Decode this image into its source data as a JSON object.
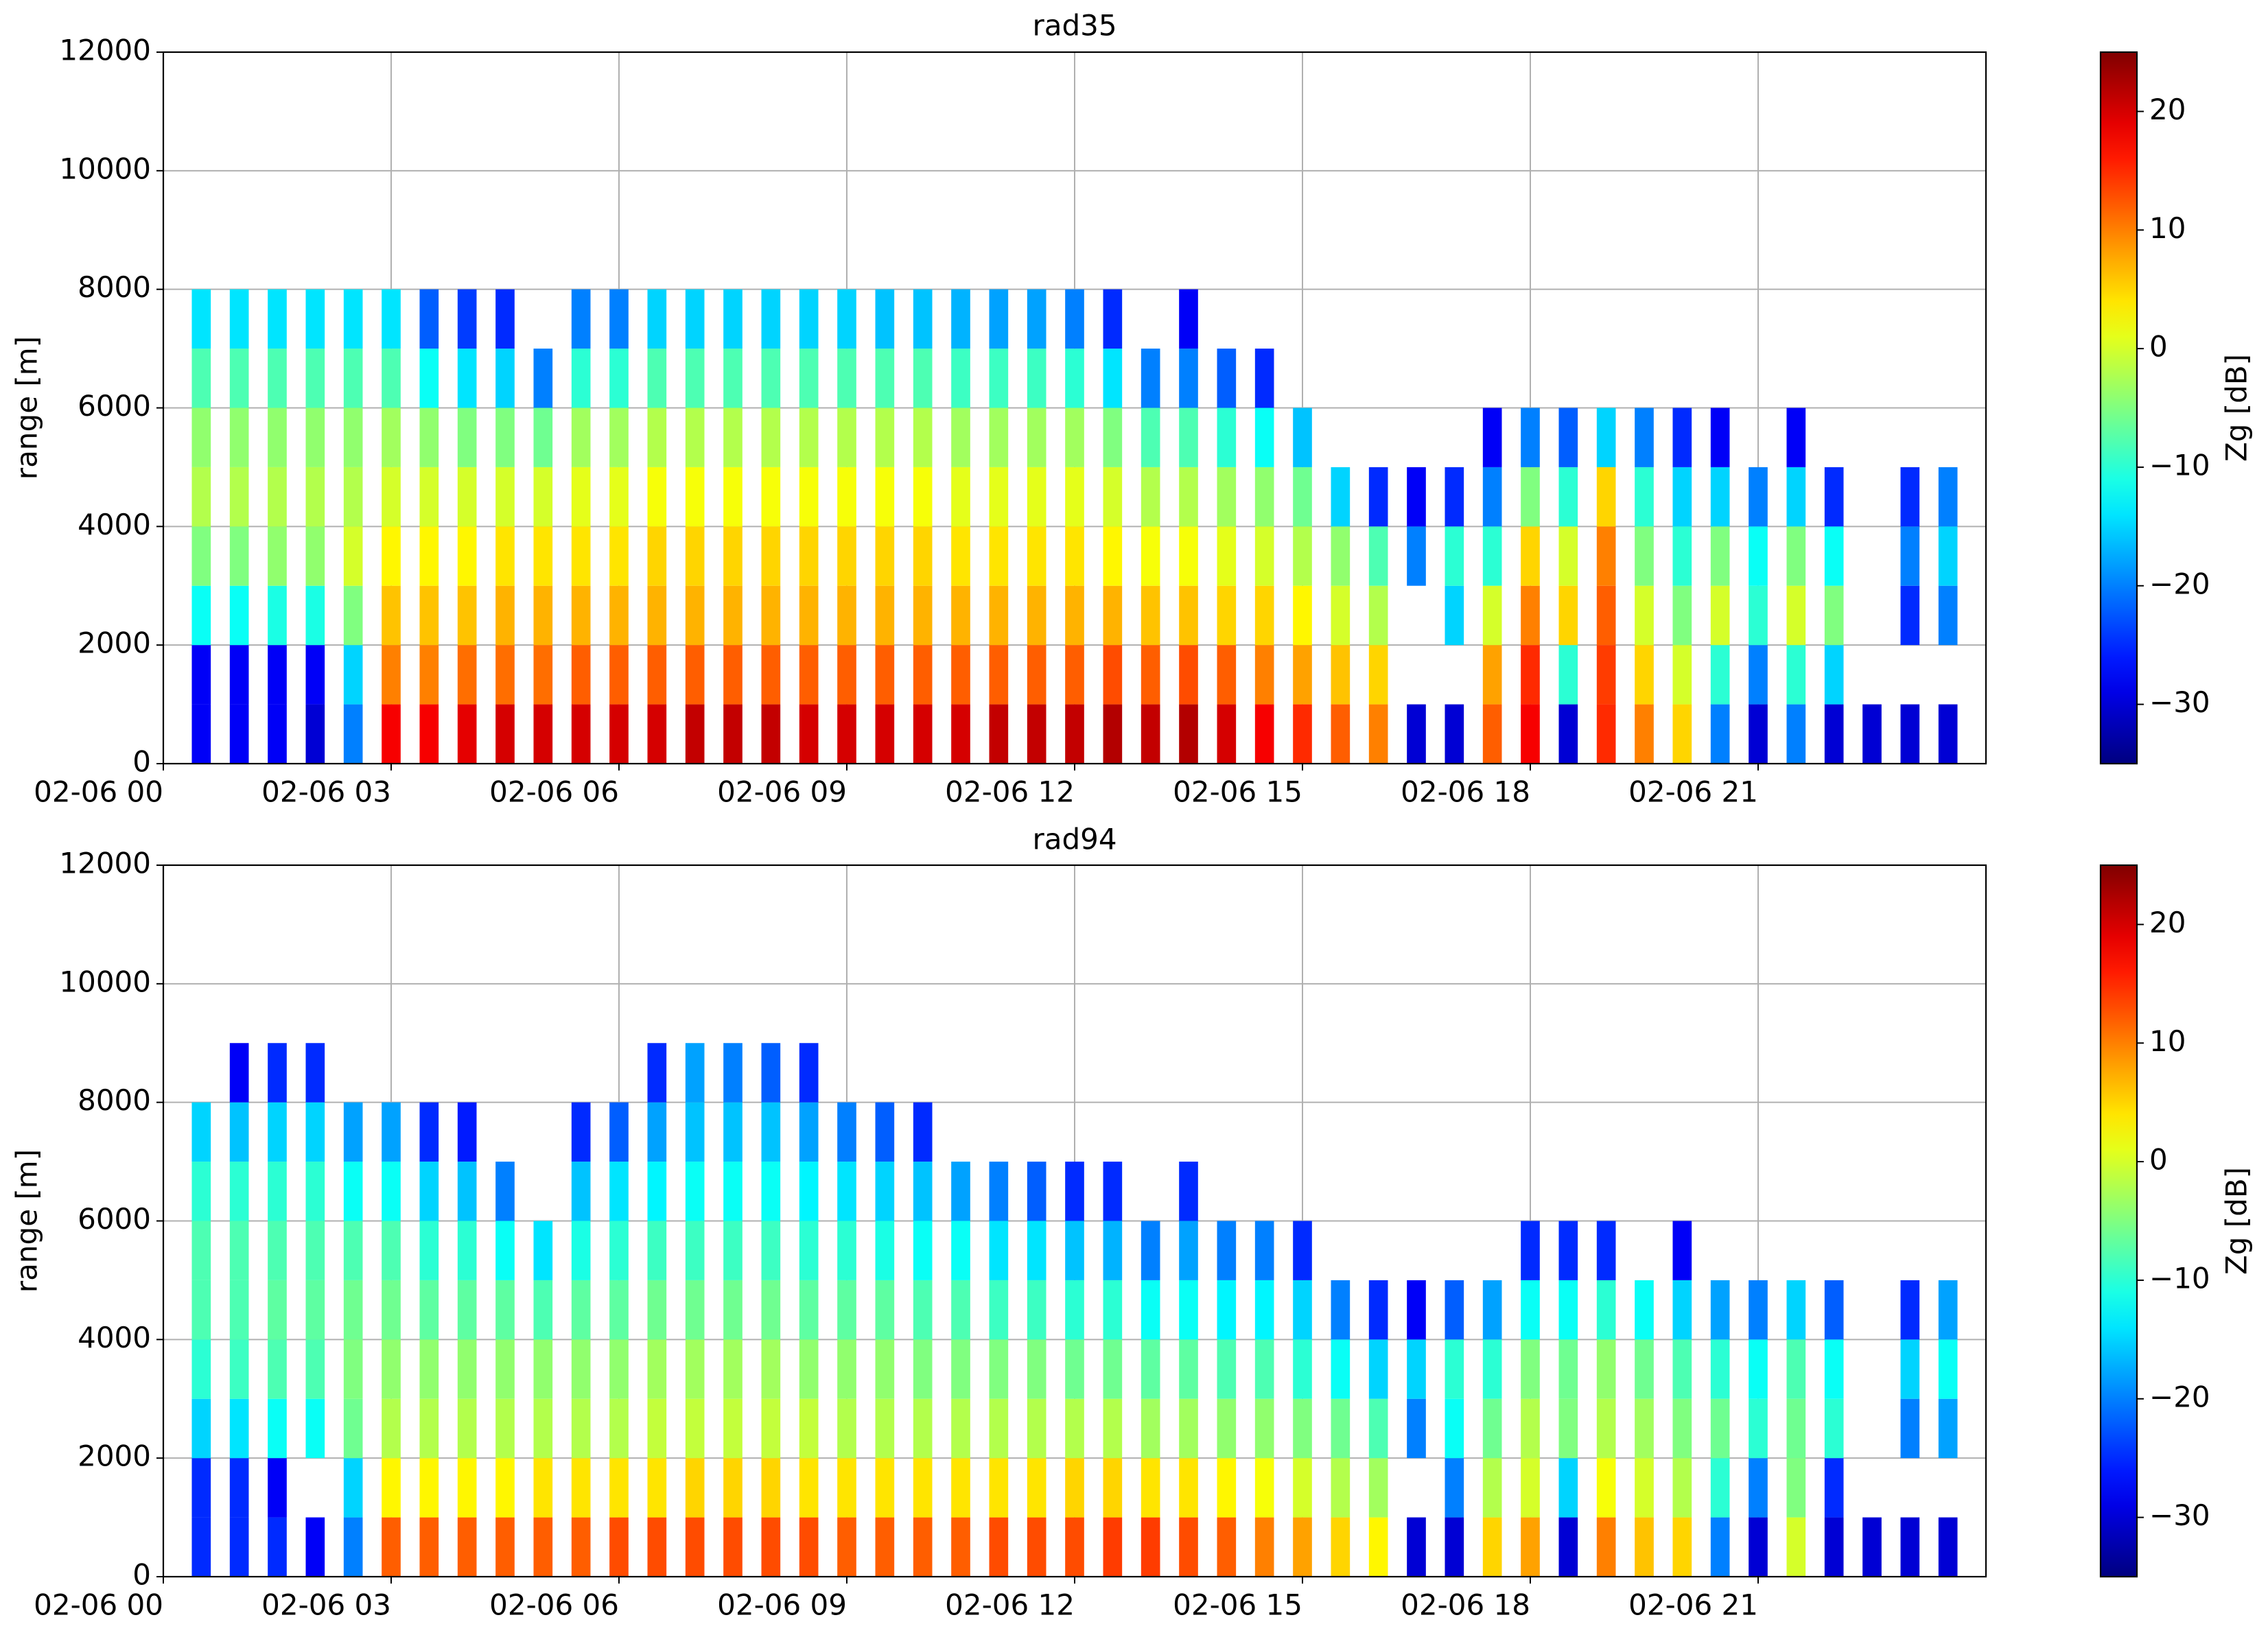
{
  "chart_data": [
    {
      "type": "heatmap",
      "title": "rad35",
      "ylabel": "range [m]",
      "colorbar_label": "Zg [dB]",
      "colormap": "jet",
      "grid": true,
      "xlim": [
        0,
        24
      ],
      "xticks": [
        {
          "value": 0,
          "label": "02-06 00"
        },
        {
          "value": 3,
          "label": "02-06 03"
        },
        {
          "value": 6,
          "label": "02-06 06"
        },
        {
          "value": 9,
          "label": "02-06 09"
        },
        {
          "value": 12,
          "label": "02-06 12"
        },
        {
          "value": 15,
          "label": "02-06 15"
        },
        {
          "value": 18,
          "label": "02-06 18"
        },
        {
          "value": 21,
          "label": "02-06 21"
        }
      ],
      "ylim": [
        0,
        12000
      ],
      "yticks": [
        0,
        2000,
        4000,
        6000,
        8000,
        10000,
        12000
      ],
      "zlim": [
        -35,
        25
      ],
      "zticks": [
        {
          "value": -30,
          "label": "−30"
        },
        {
          "value": -20,
          "label": "−20"
        },
        {
          "value": -10,
          "label": "−10"
        },
        0,
        10,
        20
      ],
      "ybins": [
        0,
        1000,
        2000,
        3000,
        4000,
        5000,
        6000,
        7000,
        8000,
        9000
      ],
      "x": [
        0.5,
        1,
        1.5,
        2,
        2.5,
        3,
        3.5,
        4,
        4.5,
        5,
        5.5,
        6,
        6.5,
        7,
        7.5,
        8,
        8.5,
        9,
        9.5,
        10,
        10.5,
        11,
        11.5,
        12,
        12.5,
        13,
        13.5,
        14,
        14.5,
        15,
        15.5,
        16,
        16.5,
        17,
        17.5,
        18,
        18.5,
        19,
        19.5,
        20,
        20.5,
        21,
        21.5,
        22,
        22.5,
        23,
        23.5
      ],
      "z": [
        [
          -28,
          -28,
          -12,
          -5,
          -2,
          -4,
          -8,
          -14,
          null
        ],
        [
          -28,
          -28,
          -12,
          -5,
          -2,
          -4,
          -8,
          -14,
          null
        ],
        [
          -28,
          -28,
          -11,
          -4,
          -2,
          -4,
          -8,
          -14,
          null
        ],
        [
          -30,
          -28,
          -11,
          -4,
          -2,
          -4,
          -8,
          -14,
          null
        ],
        [
          -20,
          -15,
          -5,
          0,
          -2,
          -4,
          -8,
          -14,
          null
        ],
        [
          18,
          10,
          6,
          3,
          0,
          -3,
          -8,
          -14,
          null
        ],
        [
          18,
          10,
          6,
          3,
          0,
          -4,
          -12,
          -22,
          null
        ],
        [
          19,
          11,
          6,
          3,
          0,
          -5,
          -14,
          -24,
          null
        ],
        [
          20,
          11,
          7,
          4,
          0,
          -5,
          -15,
          -25,
          null
        ],
        [
          20,
          11,
          7,
          4,
          0,
          -6,
          -20,
          null,
          null
        ],
        [
          20,
          12,
          7,
          4,
          1,
          -3,
          -10,
          -20,
          null
        ],
        [
          20,
          12,
          7,
          4,
          1,
          -3,
          -10,
          -20,
          null
        ],
        [
          20,
          12,
          7,
          5,
          2,
          -2,
          -8,
          -15,
          null
        ],
        [
          21,
          12,
          7,
          5,
          2,
          -2,
          -8,
          -15,
          null
        ],
        [
          21,
          12,
          7,
          5,
          2,
          -2,
          -8,
          -15,
          null
        ],
        [
          21,
          12,
          7,
          5,
          2,
          -2,
          -8,
          -15,
          null
        ],
        [
          20,
          12,
          7,
          5,
          2,
          -2,
          -8,
          -15,
          null
        ],
        [
          20,
          12,
          7,
          5,
          2,
          -2,
          -8,
          -15,
          null
        ],
        [
          20,
          12,
          7,
          5,
          2,
          -2,
          -8,
          -16,
          null
        ],
        [
          20,
          12,
          7,
          5,
          2,
          -2,
          -8,
          -16,
          null
        ],
        [
          20,
          12,
          7,
          4,
          1,
          -3,
          -9,
          -17,
          null
        ],
        [
          21,
          12,
          7,
          4,
          1,
          -3,
          -9,
          -18,
          null
        ],
        [
          21,
          12,
          7,
          4,
          1,
          -3,
          -9,
          -18,
          null
        ],
        [
          21,
          12,
          7,
          4,
          1,
          -3,
          -10,
          -20,
          null
        ],
        [
          22,
          13,
          7,
          3,
          0,
          -5,
          -14,
          -25,
          null
        ],
        [
          21,
          12,
          6,
          2,
          -2,
          -8,
          -20,
          null,
          null
        ],
        [
          22,
          13,
          6,
          2,
          -2,
          -8,
          -20,
          -28,
          null
        ],
        [
          20,
          12,
          5,
          1,
          -3,
          -10,
          -22,
          null,
          null
        ],
        [
          18,
          10,
          5,
          0,
          -4,
          -12,
          -25,
          null,
          null
        ],
        [
          15,
          8,
          3,
          -2,
          -6,
          -16,
          null,
          null,
          null
        ],
        [
          12,
          6,
          0,
          -4,
          -15,
          null,
          null,
          null,
          null
        ],
        [
          10,
          5,
          -2,
          -8,
          -25,
          null,
          null,
          null,
          null
        ],
        [
          -30,
          null,
          null,
          -20,
          -28,
          null,
          null,
          null,
          null
        ],
        [
          -30,
          null,
          -15,
          -10,
          -25,
          null,
          null,
          null,
          null
        ],
        [
          12,
          8,
          0,
          -10,
          -20,
          -28,
          null,
          null,
          null
        ],
        [
          18,
          15,
          10,
          5,
          -5,
          -20,
          null,
          null,
          null
        ],
        [
          -30,
          -10,
          5,
          0,
          -10,
          -22,
          null,
          null,
          null
        ],
        [
          15,
          14,
          12,
          10,
          5,
          -15,
          null,
          null,
          null
        ],
        [
          10,
          5,
          0,
          -5,
          -10,
          -20,
          null,
          null,
          null
        ],
        [
          5,
          0,
          -5,
          -10,
          -15,
          -25,
          null,
          null,
          null
        ],
        [
          -20,
          -10,
          0,
          -5,
          -15,
          -28,
          null,
          null,
          null
        ],
        [
          -30,
          -20,
          -10,
          -12,
          -20,
          null,
          null,
          null,
          null
        ],
        [
          -20,
          -10,
          0,
          -5,
          -15,
          -28,
          null,
          null,
          null
        ],
        [
          -30,
          -15,
          -5,
          -12,
          -25,
          null,
          null,
          null,
          null
        ],
        [
          -30,
          null,
          null,
          null,
          null,
          null,
          null,
          null,
          null
        ],
        [
          -30,
          null,
          -25,
          -20,
          -25,
          null,
          null,
          null,
          null
        ],
        [
          -30,
          null,
          -20,
          -15,
          -20,
          null,
          null,
          null,
          null
        ]
      ]
    },
    {
      "type": "heatmap",
      "title": "rad94",
      "ylabel": "range [m]",
      "colorbar_label": "Zg [dB]",
      "colormap": "jet",
      "grid": true,
      "xlim": [
        0,
        24
      ],
      "xticks": [
        {
          "value": 0,
          "label": "02-06 00"
        },
        {
          "value": 3,
          "label": "02-06 03"
        },
        {
          "value": 6,
          "label": "02-06 06"
        },
        {
          "value": 9,
          "label": "02-06 09"
        },
        {
          "value": 12,
          "label": "02-06 12"
        },
        {
          "value": 15,
          "label": "02-06 15"
        },
        {
          "value": 18,
          "label": "02-06 18"
        },
        {
          "value": 21,
          "label": "02-06 21"
        }
      ],
      "ylim": [
        0,
        12000
      ],
      "yticks": [
        0,
        2000,
        4000,
        6000,
        8000,
        10000,
        12000
      ],
      "zlim": [
        -35,
        25
      ],
      "zticks": [
        {
          "value": -30,
          "label": "−30"
        },
        {
          "value": -20,
          "label": "−20"
        },
        {
          "value": -10,
          "label": "−10"
        },
        0,
        10,
        20
      ],
      "ybins": [
        0,
        1000,
        2000,
        3000,
        4000,
        5000,
        6000,
        7000,
        8000,
        9000
      ],
      "x": [
        0.5,
        1,
        1.5,
        2,
        2.5,
        3,
        3.5,
        4,
        4.5,
        5,
        5.5,
        6,
        6.5,
        7,
        7.5,
        8,
        8.5,
        9,
        9.5,
        10,
        10.5,
        11,
        11.5,
        12,
        12.5,
        13,
        13.5,
        14,
        14.5,
        15,
        15.5,
        16,
        16.5,
        17,
        17.5,
        18,
        18.5,
        19,
        19.5,
        20,
        20.5,
        21,
        21.5,
        22,
        22.5,
        23,
        23.5
      ],
      "z": [
        [
          -25,
          -25,
          -15,
          -10,
          -8,
          -8,
          -10,
          -15,
          null
        ],
        [
          -25,
          -25,
          -14,
          -9,
          -8,
          -8,
          -10,
          -16,
          -28
        ],
        [
          -25,
          -28,
          -12,
          -8,
          -7,
          -8,
          -10,
          -15,
          -25
        ],
        [
          -28,
          null,
          -12,
          -8,
          -7,
          -8,
          -10,
          -15,
          -25
        ],
        [
          -20,
          -15,
          -6,
          -5,
          -6,
          -8,
          -12,
          -18,
          null
        ],
        [
          12,
          3,
          -2,
          -4,
          -6,
          -8,
          -12,
          -18,
          null
        ],
        [
          12,
          3,
          -2,
          -4,
          -7,
          -10,
          -15,
          -25,
          null
        ],
        [
          12,
          3,
          -2,
          -4,
          -7,
          -10,
          -16,
          -26,
          null
        ],
        [
          12,
          3,
          -2,
          -4,
          -7,
          -12,
          -20,
          null,
          null
        ],
        [
          12,
          4,
          -2,
          -4,
          -8,
          -14,
          null,
          null,
          null
        ],
        [
          12,
          4,
          -2,
          -4,
          -7,
          -11,
          -16,
          -25,
          null
        ],
        [
          13,
          4,
          -2,
          -4,
          -7,
          -10,
          -14,
          -22,
          null
        ],
        [
          13,
          4,
          -1,
          -3,
          -6,
          -9,
          -13,
          -18,
          -25
        ],
        [
          13,
          5,
          -1,
          -3,
          -6,
          -9,
          -12,
          -16,
          -18
        ],
        [
          13,
          5,
          -1,
          -3,
          -6,
          -9,
          -12,
          -16,
          -20
        ],
        [
          13,
          5,
          -1,
          -3,
          -6,
          -9,
          -12,
          -16,
          -22
        ],
        [
          13,
          4,
          -1,
          -4,
          -7,
          -10,
          -13,
          -18,
          -25
        ],
        [
          12,
          4,
          -2,
          -4,
          -7,
          -10,
          -14,
          -20,
          null
        ],
        [
          12,
          4,
          -2,
          -4,
          -7,
          -11,
          -15,
          -22,
          null
        ],
        [
          12,
          4,
          -2,
          -5,
          -8,
          -12,
          -16,
          -25,
          null
        ],
        [
          12,
          4,
          -2,
          -5,
          -8,
          -12,
          -18,
          null,
          null
        ],
        [
          13,
          4,
          -2,
          -5,
          -9,
          -14,
          -20,
          null,
          null
        ],
        [
          13,
          4,
          -2,
          -5,
          -9,
          -14,
          -22,
          null,
          null
        ],
        [
          13,
          5,
          -2,
          -6,
          -10,
          -16,
          -25,
          null,
          null
        ],
        [
          14,
          5,
          -2,
          -6,
          -10,
          -17,
          -25,
          null,
          null
        ],
        [
          14,
          4,
          -3,
          -7,
          -12,
          -20,
          null,
          null,
          null
        ],
        [
          13,
          4,
          -3,
          -7,
          -12,
          -18,
          -25,
          null,
          null
        ],
        [
          12,
          3,
          -4,
          -8,
          -13,
          -20,
          null,
          null,
          null
        ],
        [
          10,
          2,
          -4,
          -8,
          -13,
          -20,
          null,
          null,
          null
        ],
        [
          8,
          0,
          -5,
          -10,
          -15,
          -25,
          null,
          null,
          null
        ],
        [
          5,
          -2,
          -6,
          -12,
          -20,
          null,
          null,
          null,
          null
        ],
        [
          3,
          -3,
          -8,
          -15,
          -25,
          null,
          null,
          null,
          null
        ],
        [
          -30,
          null,
          -20,
          -15,
          -28,
          null,
          null,
          null,
          null
        ],
        [
          -30,
          -20,
          -12,
          -10,
          -22,
          null,
          null,
          null,
          null
        ],
        [
          5,
          -2,
          -6,
          -10,
          -18,
          null,
          null,
          null,
          null
        ],
        [
          8,
          0,
          -2,
          -5,
          -12,
          -25,
          null,
          null,
          null
        ],
        [
          -30,
          -15,
          -5,
          -6,
          -12,
          -25,
          null,
          null,
          null
        ],
        [
          10,
          2,
          -2,
          -4,
          -10,
          -25,
          null,
          null,
          null
        ],
        [
          6,
          0,
          -3,
          -6,
          -12,
          null,
          null,
          null,
          null
        ],
        [
          5,
          -2,
          -5,
          -8,
          -15,
          -28,
          null,
          null,
          null
        ],
        [
          -20,
          -10,
          -6,
          -10,
          -18,
          null,
          null,
          null,
          null
        ],
        [
          -30,
          -20,
          -10,
          -12,
          -20,
          null,
          null,
          null,
          null
        ],
        [
          0,
          -5,
          -6,
          -8,
          -15,
          null,
          null,
          null,
          null
        ],
        [
          -30,
          -25,
          -10,
          -12,
          -22,
          null,
          null,
          null,
          null
        ],
        [
          -30,
          null,
          null,
          null,
          null,
          null,
          null,
          null,
          null
        ],
        [
          -30,
          null,
          -20,
          -15,
          -25,
          null,
          null,
          null,
          null
        ],
        [
          -30,
          null,
          -18,
          -12,
          -18,
          null,
          null,
          null,
          null
        ]
      ]
    }
  ]
}
